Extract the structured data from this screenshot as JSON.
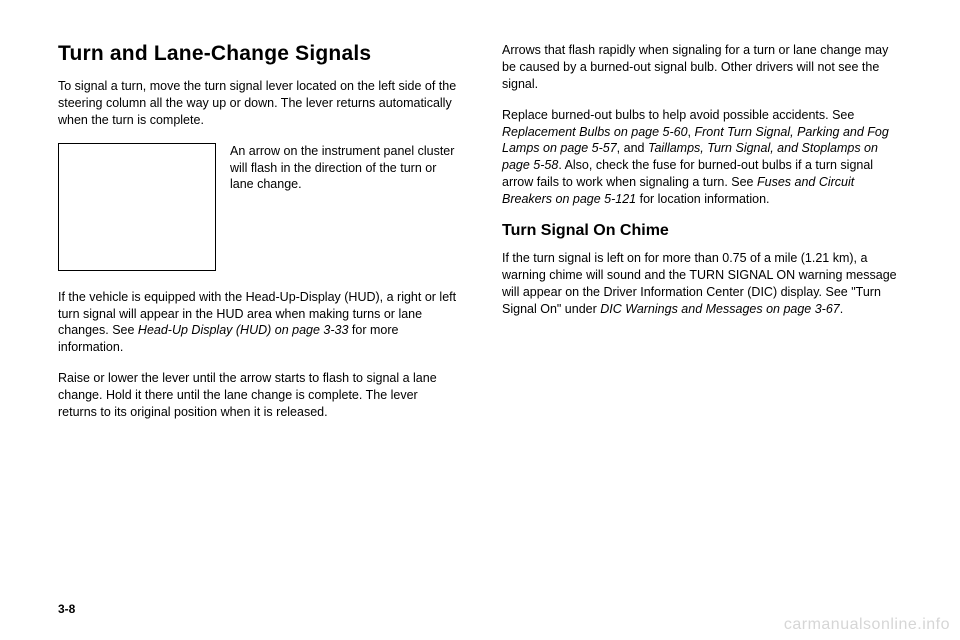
{
  "left": {
    "title": "Turn and Lane-Change Signals",
    "p1": "To signal a turn, move the turn signal lever located on the left side of the steering column all the way up or down. The lever returns automatically when the turn is complete.",
    "figcaption": "An arrow on the instrument panel cluster will flash in the direction of the turn or lane change.",
    "p2a": "If the vehicle is equipped with the Head-Up-Display (HUD), a right or left turn signal will appear in the HUD area when making turns or lane changes. See ",
    "p2i": "Head-Up Display (HUD) on page 3-33",
    "p2b": " for more information.",
    "p3": "Raise or lower the lever until the arrow starts to flash to signal a lane change. Hold it there until the lane change is complete. The lever returns to its original position when it is released."
  },
  "right": {
    "p1": "Arrows that flash rapidly when signaling for a turn or lane change may be caused by a burned-out signal bulb. Other drivers will not see the signal.",
    "p2a": "Replace burned-out bulbs to help avoid possible accidents. See ",
    "p2i1": "Replacement Bulbs on page 5-60",
    "p2b": ", ",
    "p2i2": "Front Turn Signal, Parking and Fog Lamps on page 5-57",
    "p2c": ", and ",
    "p2i3": "Taillamps, Turn Signal, and Stoplamps on page 5-58",
    "p2d": ". Also, check the fuse for burned-out bulbs if a turn signal arrow fails to work when signaling a turn. See ",
    "p2i4": "Fuses and Circuit Breakers on page 5-121",
    "p2e": " for location information.",
    "sub": "Turn Signal On Chime",
    "p3a": "If the turn signal is left on for more than 0.75 of a mile (1.21 km), a warning chime will sound and the TURN SIGNAL ON warning message will appear on the Driver Information Center (DIC) display. See \"Turn Signal On\" under ",
    "p3i": "DIC Warnings and Messages on page 3-67",
    "p3b": "."
  },
  "pageNumber": "3-8",
  "watermark": "carmanualsonline.info"
}
